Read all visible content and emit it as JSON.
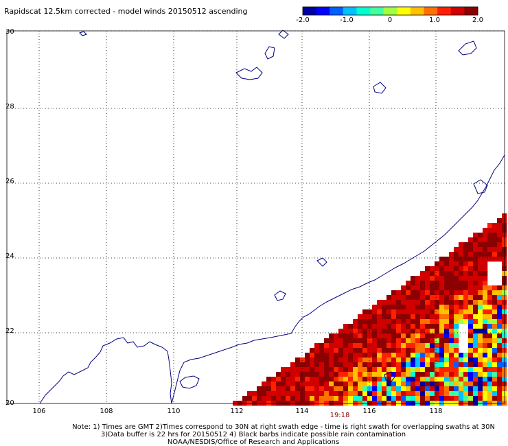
{
  "title": "Rapidscat 12.5km corrected - model winds 20150512 ascending",
  "colorbar": {
    "ticks": [
      "-2.0",
      "-1.0",
      "0",
      "1.0",
      "2.0"
    ],
    "min": -2.0,
    "max": 2.0,
    "colors": [
      "#0000a0",
      "#0000ff",
      "#0060ff",
      "#00c0ff",
      "#00ffd0",
      "#40ffa0",
      "#a0ff40",
      "#ffff00",
      "#ffc000",
      "#ff7000",
      "#ff2000",
      "#d00000",
      "#8b0000"
    ]
  },
  "map": {
    "lon_labels": [
      "106",
      "108",
      "110",
      "112",
      "114",
      "116",
      "118"
    ],
    "lat_labels": [
      "30",
      "28",
      "26",
      "24",
      "22",
      "20"
    ],
    "lon_range": [
      105.2,
      120.0
    ],
    "lat_range": [
      20.0,
      30.0
    ],
    "grid": "dotted",
    "coastline_color": "#000080"
  },
  "swath_time": "19:18",
  "notes": [
    "Note: 1) Times are GMT 2)Times correspond to 30N at right swath edge - time is right swath for overlapping swaths at 30N",
    "3)Data buffer is 22 hrs for 20150512 4) Black barbs indicate possible rain contamination",
    "NOAA/NESDIS/Office of Research and Applications"
  ]
}
